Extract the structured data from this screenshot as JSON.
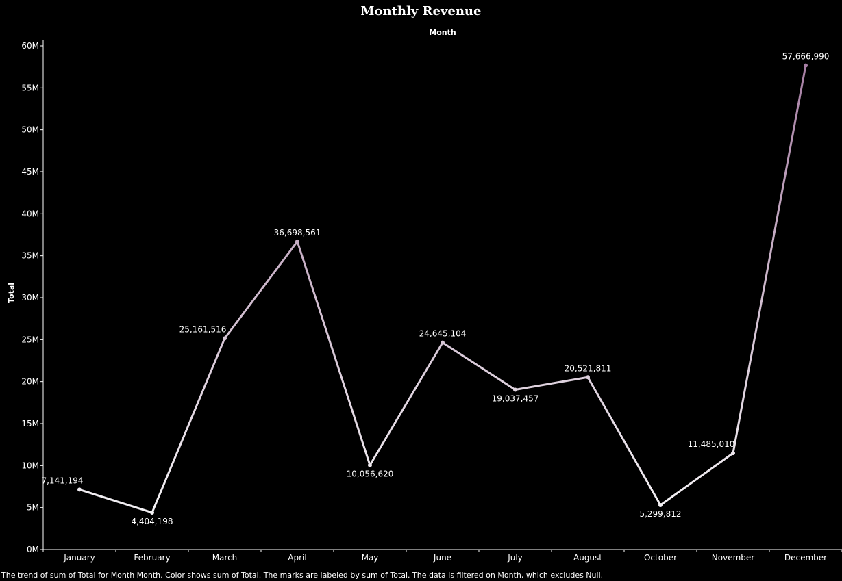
{
  "chart_data": {
    "type": "line",
    "title": "Monthly Revenue",
    "xlabel": "Month",
    "ylabel": "Total",
    "ylim": [
      0,
      60000000
    ],
    "y_ticks": [
      {
        "value": 0,
        "label": "0M"
      },
      {
        "value": 5000000,
        "label": "5M"
      },
      {
        "value": 10000000,
        "label": "10M"
      },
      {
        "value": 15000000,
        "label": "15M"
      },
      {
        "value": 20000000,
        "label": "20M"
      },
      {
        "value": 25000000,
        "label": "25M"
      },
      {
        "value": 30000000,
        "label": "30M"
      },
      {
        "value": 35000000,
        "label": "35M"
      },
      {
        "value": 40000000,
        "label": "40M"
      },
      {
        "value": 45000000,
        "label": "45M"
      },
      {
        "value": 50000000,
        "label": "50M"
      },
      {
        "value": 55000000,
        "label": "55M"
      },
      {
        "value": 60000000,
        "label": "60M"
      }
    ],
    "categories": [
      "January",
      "February",
      "March",
      "April",
      "May",
      "June",
      "July",
      "August",
      "October",
      "November",
      "December"
    ],
    "values": [
      7141194,
      4404198,
      25161516,
      36698561,
      10056620,
      24645104,
      19037457,
      20521811,
      5299812,
      11485010,
      57666990
    ],
    "data_labels": [
      "7,141,194",
      "4,404,198",
      "25,161,516",
      "36,698,561",
      "10,056,620",
      "24,645,104",
      "19,037,457",
      "20,521,811",
      "5,299,812",
      "11,485,010",
      "57,666,990"
    ],
    "grid": false,
    "color_scale": {
      "low": "#f5f3f6",
      "high": "#a77fa4"
    }
  },
  "caption": "The trend of sum of Total for Month Month.  Color shows sum of Total.  The marks are labeled by sum of Total. The data is filtered on Month, which excludes Null."
}
